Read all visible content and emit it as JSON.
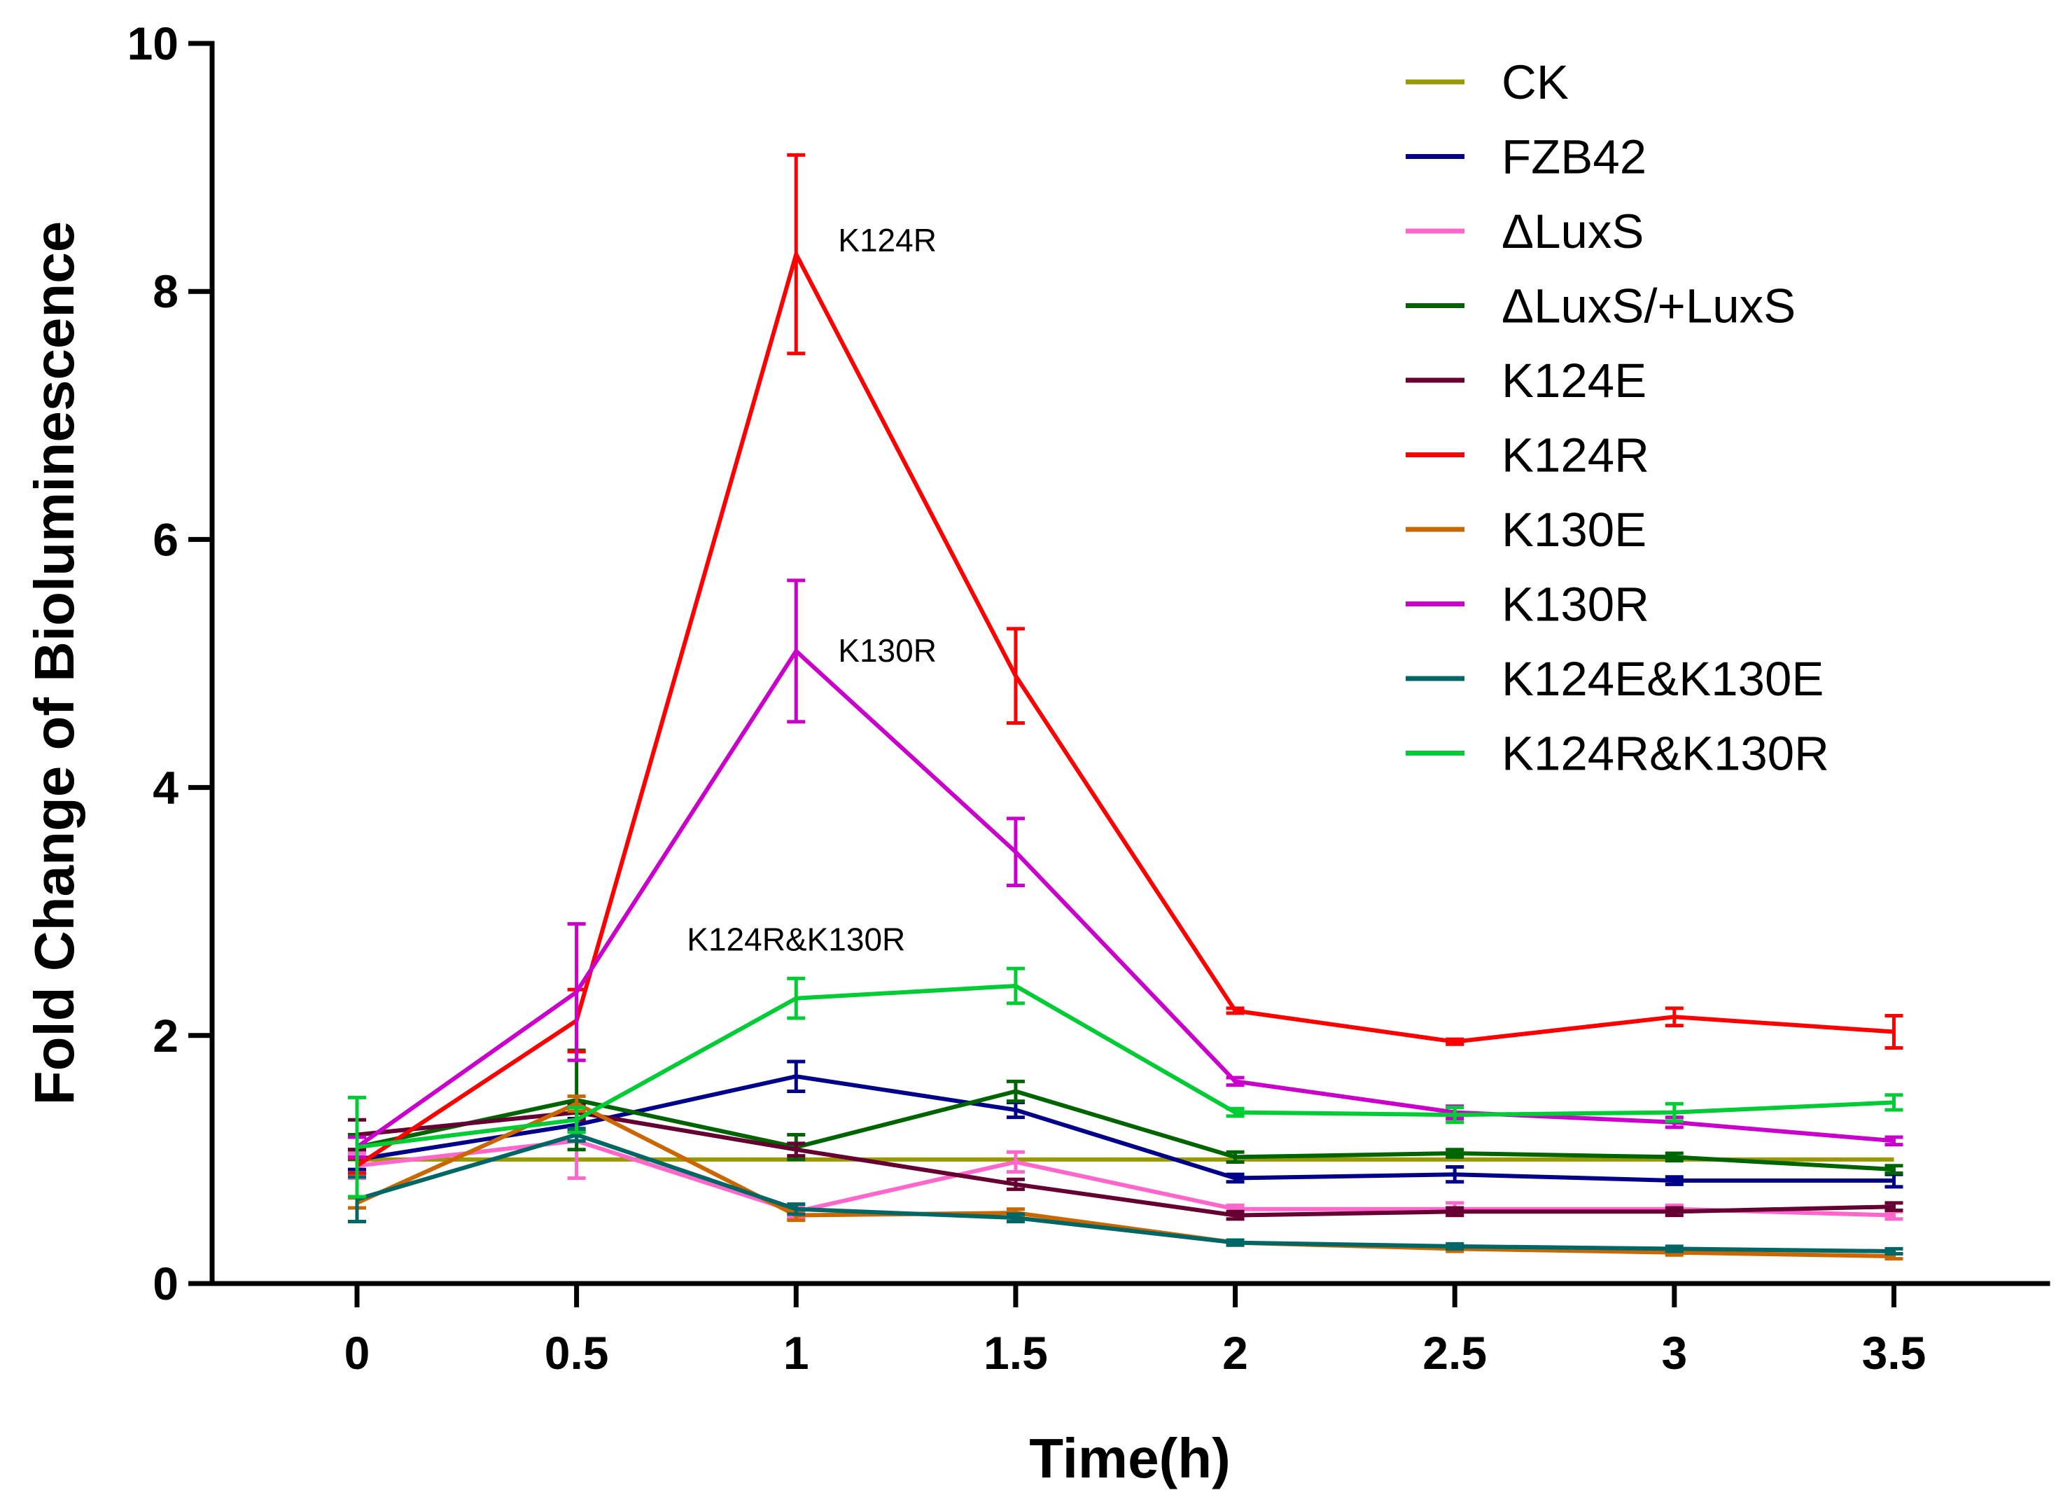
{
  "chart_data": {
    "type": "line",
    "title": "",
    "xlabel": "Time(h)",
    "ylabel": "Fold Change of Bioluminescence",
    "x": [
      0,
      0.5,
      1,
      1.5,
      2,
      2.5,
      3,
      3.5
    ],
    "x_tick_labels": [
      "0",
      "0.5",
      "1",
      "1.5",
      "2",
      "2.5",
      "3",
      "3.5"
    ],
    "y_ticks": [
      0,
      2,
      4,
      6,
      8,
      10
    ],
    "y_tick_labels": [
      "0",
      "2",
      "4",
      "6",
      "8",
      "10"
    ],
    "xlim": [
      -0.33,
      3.85
    ],
    "ylim": [
      0,
      10
    ],
    "grid": false,
    "legend_position": "top-right",
    "series": [
      {
        "name": "CK",
        "color": "#999900",
        "values": [
          1.0,
          1.0,
          1.0,
          1.0,
          1.0,
          1.0,
          1.0,
          1.0
        ],
        "errors": [
          0,
          0,
          0,
          0,
          0,
          0,
          0,
          0
        ]
      },
      {
        "name": "FZB42",
        "color": "#00008B",
        "values": [
          1.0,
          1.28,
          1.67,
          1.4,
          0.85,
          0.88,
          0.83,
          0.83
        ],
        "errors": [
          0.08,
          0.05,
          0.12,
          0.06,
          0.03,
          0.06,
          0.03,
          0.05
        ]
      },
      {
        "name": "ΔLuxS",
        "color": "#FF66CC",
        "values": [
          0.95,
          1.15,
          0.58,
          0.98,
          0.6,
          0.6,
          0.6,
          0.55
        ],
        "errors": [
          0.1,
          0.3,
          0.05,
          0.08,
          0.03,
          0.05,
          0.03,
          0.03
        ]
      },
      {
        "name": "ΔLuxS/+LuxS",
        "color": "#006400",
        "values": [
          1.1,
          1.48,
          1.1,
          1.55,
          1.02,
          1.05,
          1.02,
          0.92
        ],
        "errors": [
          0.1,
          0.4,
          0.1,
          0.08,
          0.04,
          0.03,
          0.03,
          0.03
        ]
      },
      {
        "name": "K124E",
        "color": "#660033",
        "values": [
          1.2,
          1.38,
          1.08,
          0.8,
          0.55,
          0.58,
          0.58,
          0.62
        ],
        "errors": [
          0.12,
          0.06,
          0.05,
          0.04,
          0.03,
          0.03,
          0.03,
          0.03
        ]
      },
      {
        "name": "K124R",
        "color": "#FF0000",
        "values": [
          0.95,
          2.12,
          8.3,
          4.9,
          2.2,
          1.95,
          2.15,
          2.03
        ],
        "errors": [
          0.06,
          0.25,
          0.8,
          0.38,
          0.02,
          0.02,
          0.07,
          0.13
        ]
      },
      {
        "name": "K130E",
        "color": "#CC6600",
        "values": [
          0.65,
          1.45,
          0.55,
          0.57,
          0.33,
          0.28,
          0.25,
          0.22
        ],
        "errors": [
          0.04,
          0.06,
          0.04,
          0.03,
          0.02,
          0.02,
          0.02,
          0.02
        ]
      },
      {
        "name": "K130R",
        "color": "#CC00CC",
        "values": [
          1.1,
          2.35,
          5.1,
          3.48,
          1.63,
          1.38,
          1.3,
          1.15
        ],
        "errors": [
          0.08,
          0.55,
          0.57,
          0.27,
          0.03,
          0.05,
          0.04,
          0.03
        ]
      },
      {
        "name": "K124E&K130E",
        "color": "#006666",
        "values": [
          0.68,
          1.2,
          0.6,
          0.53,
          0.33,
          0.3,
          0.28,
          0.26
        ],
        "errors": [
          0.18,
          0.05,
          0.04,
          0.03,
          0.02,
          0.02,
          0.02,
          0.02
        ]
      },
      {
        "name": "K124R&K130R",
        "color": "#00CC33",
        "values": [
          1.1,
          1.32,
          2.3,
          2.4,
          1.38,
          1.36,
          1.38,
          1.46
        ],
        "errors": [
          0.4,
          0.1,
          0.16,
          0.14,
          0.03,
          0.06,
          0.07,
          0.06
        ]
      }
    ],
    "annotations": [
      {
        "text": "K124R",
        "series": "K124R",
        "x": 1
      },
      {
        "text": "K130R",
        "series": "K130R",
        "x": 1
      },
      {
        "text": "K124R&K130R",
        "series": "K124R&K130R",
        "x": 1
      }
    ]
  }
}
